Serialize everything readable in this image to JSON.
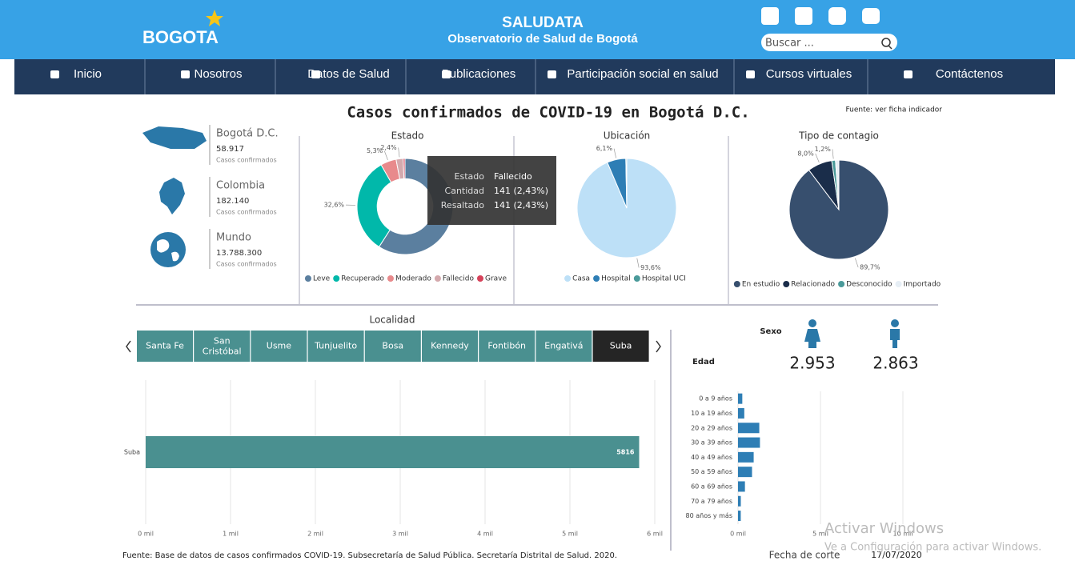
{
  "header": {
    "logo": "BOGOTA",
    "title": "SALUDATA",
    "subtitle": "Observatorio de Salud de Bogotá",
    "search_placeholder": "Buscar ..."
  },
  "nav": [
    "Inicio",
    "Nosotros",
    "Datos de Salud",
    "Publicaciones",
    "Participación social en salud",
    "Cursos virtuales",
    "Contáctenos"
  ],
  "dashboard": {
    "title": "Casos confirmados de COVID-19 en Bogotá D.C.",
    "source_link": "Fuente: ver ficha indicador",
    "summary": [
      {
        "name": "Bogotá D.C.",
        "value": "58.917",
        "label": "Casos confirmados"
      },
      {
        "name": "Colombia",
        "value": "182.140",
        "label": "Casos confirmados"
      },
      {
        "name": "Mundo",
        "value": "13.788.300",
        "label": "Casos confirmados"
      }
    ],
    "pies": [
      {
        "type": "donut",
        "title": "Estado",
        "categories": [
          "Leve",
          "Recuperado",
          "Moderado",
          "Fallecido",
          "Grave"
        ],
        "colors": [
          "#5b7f9f",
          "#01b8aa",
          "#e88a8c",
          "#d4a9ad",
          "#d6425a"
        ],
        "values": [
          59.1,
          32.6,
          5.3,
          2.4,
          0.6
        ],
        "value_labels": [
          null,
          "32,6%",
          "5,3%",
          "2,4%",
          null
        ]
      },
      {
        "type": "pie",
        "title": "Ubicación",
        "categories": [
          "Casa",
          "Hospital",
          "Hospital UCI"
        ],
        "colors": [
          "#bde0f7",
          "#2e7eb5",
          "#4a9a9a"
        ],
        "values": [
          93.6,
          6.1,
          0.3
        ],
        "value_labels": [
          "93,6%",
          "6,1%",
          null
        ]
      },
      {
        "type": "pie",
        "title": "Tipo de contagio",
        "categories": [
          "En estudio",
          "Relacionado",
          "Desconocido",
          "Importado"
        ],
        "colors": [
          "#374f6e",
          "#1a2d4a",
          "#4a9a9a",
          "#e6eef5"
        ],
        "values": [
          89.7,
          8.0,
          1.2,
          1.1
        ],
        "value_labels": [
          "89,7%",
          "8,0%",
          "1,2%",
          null
        ]
      }
    ],
    "tooltip": {
      "rows": [
        [
          "Estado",
          "Fallecido"
        ],
        [
          "Cantidad",
          "141 (2,43%)"
        ],
        [
          "Resaltado",
          "141 (2,43%)"
        ]
      ]
    },
    "localidad": {
      "title": "Localidad",
      "tabs": [
        "Santa Fe",
        "San Cristóbal",
        "Usme",
        "Tunjuelito",
        "Bosa",
        "Kennedy",
        "Fontibón",
        "Engativá",
        "Suba"
      ],
      "selected": 8,
      "chart": {
        "type": "bar",
        "categories": [
          "Suba"
        ],
        "values": [
          5816
        ],
        "color": "#4a9090",
        "xlim": [
          0,
          6000
        ],
        "xticks": [
          {
            "value": 0,
            "label": "0 mil"
          },
          {
            "value": 1000,
            "label": "1 mil"
          },
          {
            "value": 2000,
            "label": "2 mil"
          },
          {
            "value": 3000,
            "label": "3 mil"
          },
          {
            "value": 4000,
            "label": "4 mil"
          },
          {
            "value": 5000,
            "label": "5 mil"
          },
          {
            "value": 6000,
            "label": "6 mil"
          }
        ]
      }
    },
    "sexo": {
      "label": "Sexo",
      "values": [
        "2.953",
        "2.863"
      ]
    },
    "edad": {
      "type": "bar",
      "label": "Edad",
      "color": "#2e7eb5",
      "categories": [
        "0 a 9 años",
        "10 a 19 años",
        "20 a 29 años",
        "30 a 39 años",
        "40 a 49 años",
        "50 a 59 años",
        "60 a 69 años",
        "70 a 79 años",
        "80 años y más"
      ],
      "values": [
        260,
        380,
        1290,
        1330,
        950,
        850,
        420,
        170,
        166
      ],
      "xlim": [
        0,
        10000
      ],
      "xticks": [
        {
          "value": 0,
          "label": "0 mil"
        },
        {
          "value": 5000,
          "label": "5 mil"
        },
        {
          "value": 10000,
          "label": "10 mil"
        }
      ]
    },
    "footer": {
      "source": "Fuente: Base de datos de casos confirmados COVID-19. Subsecretaría de Salud Pública. Secretaría Distrital de Salud. 2020.",
      "cutoff_label": "Fecha de corte",
      "cutoff_date": "17/07/2020"
    }
  },
  "watermark": {
    "title": "Activar Windows",
    "text": "Ve a Configuración para activar Windows."
  }
}
